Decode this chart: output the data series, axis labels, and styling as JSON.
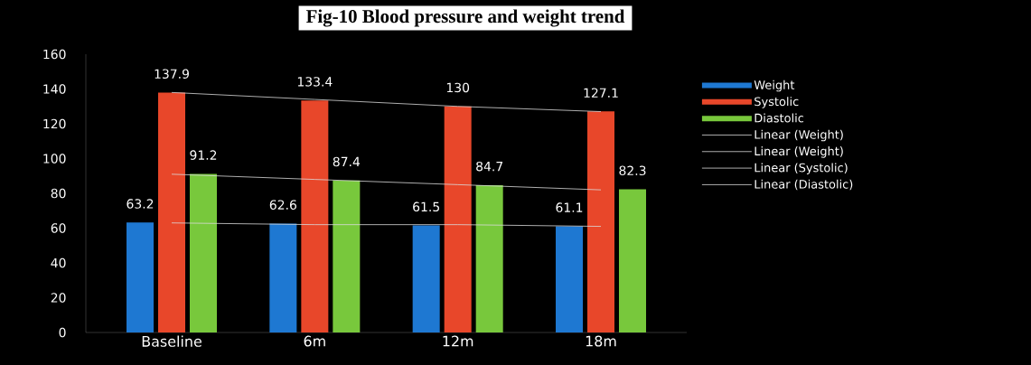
{
  "chart_data": {
    "type": "bar",
    "title": "Fig-10 Blood pressure and weight trend",
    "categories": [
      "Baseline",
      "6m",
      "12m",
      "18m"
    ],
    "series": [
      {
        "name": "Weight",
        "color": "#1e78d2",
        "values": [
          63.2,
          62.6,
          61.5,
          61.1
        ],
        "value_labels": [
          "63.2",
          "62.6",
          "61.5",
          "61.1"
        ]
      },
      {
        "name": "Systolic",
        "color": "#e8472a",
        "values": [
          137.9,
          133.4,
          130,
          127.1
        ],
        "value_labels": [
          "137.9",
          "133.4",
          "130",
          "127.1"
        ]
      },
      {
        "name": "Diastolic",
        "color": "#78c83c",
        "values": [
          91.2,
          87.4,
          84.7,
          82.3
        ],
        "value_labels": [
          "91.2",
          "87.4",
          "84.7",
          "82.3"
        ]
      },
      {
        "name": "Linear (Weight)",
        "type": "line",
        "color": "#d9d9d9",
        "values": [
          63,
          62,
          62,
          61
        ]
      },
      {
        "name": "Linear (Weight)",
        "type": "line",
        "color": "#d9d9d9",
        "values": [
          null,
          null,
          null,
          null
        ]
      },
      {
        "name": "Linear (Systolic)",
        "type": "line",
        "color": "#d9d9d9",
        "values": [
          138,
          134,
          130,
          127
        ]
      },
      {
        "name": "Linear (Diastolic)",
        "type": "line",
        "color": "#d9d9d9",
        "values": [
          91,
          88,
          85,
          82
        ]
      }
    ],
    "ylim": [
      0,
      160
    ],
    "yticks": [
      0,
      20,
      40,
      60,
      80,
      100,
      120,
      140,
      160
    ],
    "legend": "right"
  }
}
